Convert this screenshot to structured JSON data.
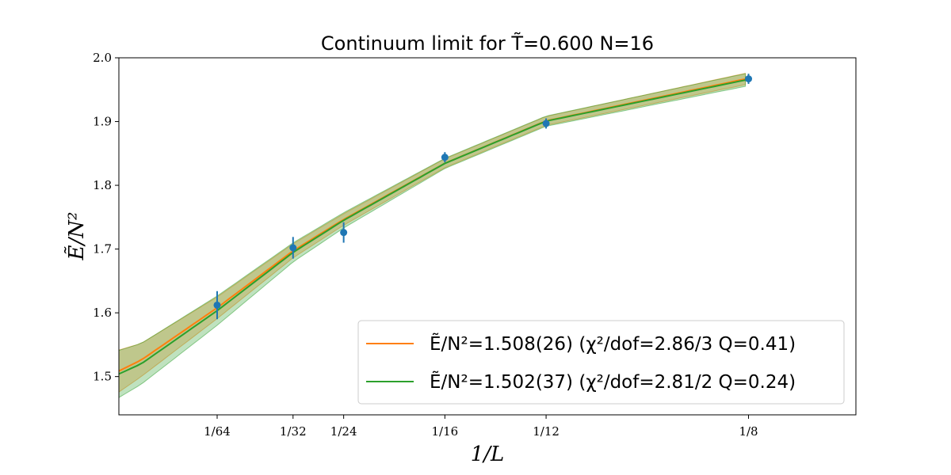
{
  "chart_data": {
    "type": "line",
    "title": "Continuum limit for T̃=0.600 N=16",
    "xlabel": "1/L",
    "ylabel": "Ẽ/N²",
    "xlim": [
      -0.0046,
      0.1471
    ],
    "ylim": [
      1.44,
      2.0
    ],
    "x_ticks": [
      {
        "value": 0.015625,
        "label": "1/64"
      },
      {
        "value": 0.03125,
        "label": "1/32"
      },
      {
        "value": 0.041667,
        "label": "1/24"
      },
      {
        "value": 0.0625,
        "label": "1/16"
      },
      {
        "value": 0.083333,
        "label": "1/12"
      },
      {
        "value": 0.125,
        "label": "1/8"
      }
    ],
    "y_ticks": [
      1.5,
      1.6,
      1.7,
      1.8,
      1.9,
      2.0
    ],
    "y_tick_labels": [
      "1.5",
      "1.6",
      "1.7",
      "1.8",
      "1.9",
      "2.0"
    ],
    "data_points": {
      "color": "#1f77b4",
      "x": [
        0.015625,
        0.03125,
        0.041667,
        0.0625,
        0.083333,
        0.125
      ],
      "y": [
        1.612,
        1.702,
        1.726,
        1.844,
        1.897,
        1.967
      ],
      "yerr": [
        0.022,
        0.017,
        0.016,
        0.008,
        0.008,
        0.008
      ]
    },
    "series": [
      {
        "name": "Ẽ/N²=1.508(26) (χ²/dof=2.86/3 Q=0.41)",
        "color": "#ff7f0e",
        "band_color": "#ff7f0e",
        "x": [
          -0.0046,
          0.0,
          0.015625,
          0.03125,
          0.041667,
          0.0625,
          0.083333,
          0.125
        ],
        "y": [
          1.5087,
          1.526,
          1.6079,
          1.6972,
          1.7464,
          1.8346,
          1.9011,
          1.9678
        ],
        "err": [
          0.033,
          0.026,
          0.017,
          0.011,
          0.009,
          0.007,
          0.007,
          0.009
        ]
      },
      {
        "name": "Ẽ/N²=1.502(37) (χ²/dof=2.81/2 Q=0.24)",
        "color": "#2ca02c",
        "band_color": "#2ca02c",
        "x": [
          -0.0046,
          0.0,
          0.015625,
          0.03125,
          0.041667,
          0.0625,
          0.083333,
          0.125
        ],
        "y": [
          1.5041,
          1.52,
          1.6034,
          1.6948,
          1.7451,
          1.8344,
          1.9006,
          1.9662
        ],
        "err": [
          0.037,
          0.032,
          0.023,
          0.015,
          0.012,
          0.008,
          0.008,
          0.01
        ]
      }
    ],
    "legend": {
      "placement": "lower-right"
    },
    "grid": false
  }
}
